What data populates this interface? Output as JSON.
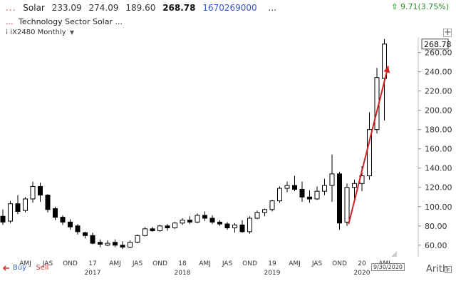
{
  "header": {
    "dots": "...",
    "symbol": "Solar",
    "open": "233.09",
    "high": "274.09",
    "low": "189.60",
    "last": "268.78",
    "volume": "1670269000",
    "more": "...",
    "change_value": "9.71",
    "change_pct": "(3.75%)",
    "sector_dots": "...",
    "sector_label": "Technology Sector  Solar ...",
    "period_label": "iX2480 Monthly",
    "plus_label": "+"
  },
  "toolbar": {
    "buy_label": "Buy",
    "sell_label": "Sell",
    "scale_label": "Arith",
    "scroll_label": "<",
    "cursor_date": "9/30/2020"
  },
  "colors": {
    "up_candle": "#ffffff",
    "down_candle": "#000000",
    "trend_arrow": "#d62020",
    "change_up": "#1faa1f"
  },
  "chart_data": {
    "type": "candlestick",
    "interval": "monthly",
    "ylim": [
      48,
      276
    ],
    "y_ticks": [
      "60.00",
      "80.00",
      "100.00",
      "120.00",
      "140.00",
      "160.00",
      "180.00",
      "200.00",
      "220.00",
      "240.00",
      "260.00"
    ],
    "last_price_label": "268.78",
    "x_month_labels": [
      {
        "i": 3,
        "label": "AMJ"
      },
      {
        "i": 6,
        "label": "JAS"
      },
      {
        "i": 9,
        "label": "OND"
      },
      {
        "i": 15,
        "label": "AMJ"
      },
      {
        "i": 18,
        "label": "JAS"
      },
      {
        "i": 21,
        "label": "OND"
      },
      {
        "i": 27,
        "label": "AMJ"
      },
      {
        "i": 30,
        "label": "JAS"
      },
      {
        "i": 33,
        "label": "OND"
      },
      {
        "i": 39,
        "label": "AMJ"
      },
      {
        "i": 42,
        "label": "JAS"
      },
      {
        "i": 45,
        "label": "OND"
      },
      {
        "i": 51,
        "label": "AMJ"
      }
    ],
    "x_year_labels": [
      {
        "i": 12,
        "label": "17"
      },
      {
        "i": 24,
        "label": "18"
      },
      {
        "i": 36,
        "label": "19"
      },
      {
        "i": 48,
        "label": "20"
      }
    ],
    "x_year_full_labels": [
      {
        "i": 12,
        "label": "2017"
      },
      {
        "i": 24,
        "label": "2018"
      },
      {
        "i": 36,
        "label": "2019"
      },
      {
        "i": 48,
        "label": "2020"
      }
    ],
    "candles": [
      {
        "o": 90,
        "h": 97,
        "l": 81,
        "c": 84
      },
      {
        "o": 85,
        "h": 106,
        "l": 83,
        "c": 103
      },
      {
        "o": 103,
        "h": 112,
        "l": 92,
        "c": 95
      },
      {
        "o": 96,
        "h": 110,
        "l": 94,
        "c": 108
      },
      {
        "o": 108,
        "h": 126,
        "l": 104,
        "c": 121
      },
      {
        "o": 121,
        "h": 125,
        "l": 105,
        "c": 112
      },
      {
        "o": 112,
        "h": 113,
        "l": 94,
        "c": 97
      },
      {
        "o": 98,
        "h": 100,
        "l": 86,
        "c": 89
      },
      {
        "o": 89,
        "h": 91,
        "l": 81,
        "c": 84
      },
      {
        "o": 84,
        "h": 87,
        "l": 76,
        "c": 79
      },
      {
        "o": 80,
        "h": 82,
        "l": 71,
        "c": 74
      },
      {
        "o": 73,
        "h": 74,
        "l": 67,
        "c": 70
      },
      {
        "o": 70,
        "h": 73,
        "l": 61,
        "c": 62
      },
      {
        "o": 63,
        "h": 66,
        "l": 58,
        "c": 61
      },
      {
        "o": 60,
        "h": 65,
        "l": 59,
        "c": 62
      },
      {
        "o": 63,
        "h": 66,
        "l": 58,
        "c": 60
      },
      {
        "o": 60,
        "h": 64,
        "l": 56,
        "c": 58
      },
      {
        "o": 58,
        "h": 65,
        "l": 57,
        "c": 63
      },
      {
        "o": 63,
        "h": 71,
        "l": 62,
        "c": 70
      },
      {
        "o": 70,
        "h": 79,
        "l": 69,
        "c": 77
      },
      {
        "o": 77,
        "h": 79,
        "l": 74,
        "c": 75
      },
      {
        "o": 75,
        "h": 81,
        "l": 74,
        "c": 80
      },
      {
        "o": 80,
        "h": 82,
        "l": 75,
        "c": 78
      },
      {
        "o": 78,
        "h": 84,
        "l": 77,
        "c": 83
      },
      {
        "o": 83,
        "h": 88,
        "l": 81,
        "c": 86
      },
      {
        "o": 86,
        "h": 90,
        "l": 82,
        "c": 84
      },
      {
        "o": 84,
        "h": 93,
        "l": 83,
        "c": 91
      },
      {
        "o": 91,
        "h": 95,
        "l": 85,
        "c": 88
      },
      {
        "o": 88,
        "h": 91,
        "l": 82,
        "c": 84
      },
      {
        "o": 84,
        "h": 86,
        "l": 80,
        "c": 82
      },
      {
        "o": 82,
        "h": 84,
        "l": 76,
        "c": 78
      },
      {
        "o": 78,
        "h": 83,
        "l": 73,
        "c": 81
      },
      {
        "o": 81,
        "h": 86,
        "l": 73,
        "c": 74
      },
      {
        "o": 74,
        "h": 90,
        "l": 72,
        "c": 88
      },
      {
        "o": 88,
        "h": 96,
        "l": 87,
        "c": 94
      },
      {
        "o": 94,
        "h": 98,
        "l": 90,
        "c": 97
      },
      {
        "o": 97,
        "h": 107,
        "l": 95,
        "c": 106
      },
      {
        "o": 106,
        "h": 121,
        "l": 104,
        "c": 119
      },
      {
        "o": 119,
        "h": 126,
        "l": 115,
        "c": 122
      },
      {
        "o": 122,
        "h": 132,
        "l": 116,
        "c": 118
      },
      {
        "o": 118,
        "h": 126,
        "l": 105,
        "c": 110
      },
      {
        "o": 110,
        "h": 117,
        "l": 104,
        "c": 108
      },
      {
        "o": 108,
        "h": 121,
        "l": 107,
        "c": 116
      },
      {
        "o": 116,
        "h": 129,
        "l": 112,
        "c": 122
      },
      {
        "o": 122,
        "h": 154,
        "l": 105,
        "c": 134
      },
      {
        "o": 134,
        "h": 136,
        "l": 76,
        "c": 83
      },
      {
        "o": 84,
        "h": 124,
        "l": 80,
        "c": 120
      },
      {
        "o": 120,
        "h": 128,
        "l": 106,
        "c": 124
      },
      {
        "o": 124,
        "h": 142,
        "l": 116,
        "c": 132
      },
      {
        "o": 132,
        "h": 198,
        "l": 128,
        "c": 180
      },
      {
        "o": 180,
        "h": 244,
        "l": 176,
        "c": 234
      },
      {
        "o": 233.09,
        "h": 274.09,
        "l": 189.6,
        "c": 268.78
      }
    ],
    "trend_arrow": {
      "from": {
        "i": 46.5,
        "y": 82
      },
      "to": {
        "i": 51.8,
        "y": 246
      }
    }
  }
}
